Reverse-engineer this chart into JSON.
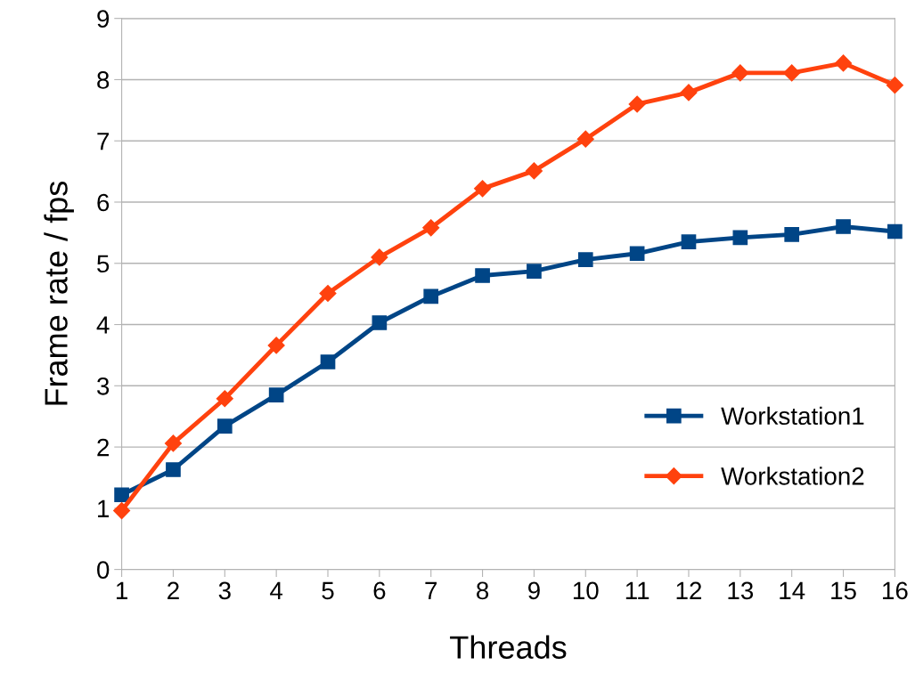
{
  "chart_data": {
    "type": "line",
    "xlabel": "Threads",
    "ylabel": "Frame rate / fps",
    "x": [
      1,
      2,
      3,
      4,
      5,
      6,
      7,
      8,
      9,
      10,
      11,
      12,
      13,
      14,
      15,
      16
    ],
    "series": [
      {
        "name": "Workstation1",
        "color": "#004586",
        "marker": "square",
        "values": [
          1.22,
          1.63,
          2.34,
          2.85,
          3.39,
          4.03,
          4.46,
          4.8,
          4.87,
          5.06,
          5.16,
          5.35,
          5.42,
          5.47,
          5.6,
          5.52
        ]
      },
      {
        "name": "Workstation2",
        "color": "#ff420e",
        "marker": "diamond",
        "values": [
          0.96,
          2.06,
          2.79,
          3.66,
          4.51,
          5.1,
          5.58,
          6.22,
          6.51,
          7.03,
          7.6,
          7.79,
          8.11,
          8.11,
          8.27,
          7.91
        ]
      }
    ],
    "xlim": [
      1,
      16
    ],
    "xticks": [
      1,
      2,
      3,
      4,
      5,
      6,
      7,
      8,
      9,
      10,
      11,
      12,
      13,
      14,
      15,
      16
    ],
    "ylim": [
      0,
      9
    ],
    "yticks": [
      0,
      1,
      2,
      3,
      4,
      5,
      6,
      7,
      8,
      9
    ],
    "grid": "y",
    "legend": "right",
    "line_style": "solid"
  }
}
